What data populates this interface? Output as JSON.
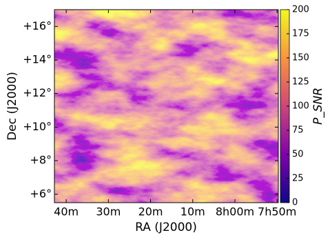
{
  "chart_data": {
    "type": "image",
    "x_label": "RA (J2000)",
    "y_label": "Dec (J2000)",
    "xlim": [
      522.8,
      469.7
    ],
    "xticks": [
      {
        "value": 520,
        "label": "40m"
      },
      {
        "value": 510,
        "label": "30m"
      },
      {
        "value": 500,
        "label": "20m"
      },
      {
        "value": 490,
        "label": "10m"
      },
      {
        "value": 480,
        "label": "8h00m"
      },
      {
        "value": 470,
        "label": "7h50m"
      }
    ],
    "ylim": [
      5.5,
      17.0
    ],
    "yticks": [
      {
        "value": 6,
        "label": "+6°"
      },
      {
        "value": 8,
        "label": "+8°"
      },
      {
        "value": 10,
        "label": "+10°"
      },
      {
        "value": 12,
        "label": "+12°"
      },
      {
        "value": 14,
        "label": "+14°"
      },
      {
        "value": 16,
        "label": "+16°"
      }
    ],
    "colorbar": {
      "label": "P_SNR",
      "colormap": "plasma",
      "lim": [
        0,
        200
      ],
      "ticks": [
        0,
        25,
        50,
        75,
        100,
        125,
        150,
        175,
        200
      ]
    }
  }
}
